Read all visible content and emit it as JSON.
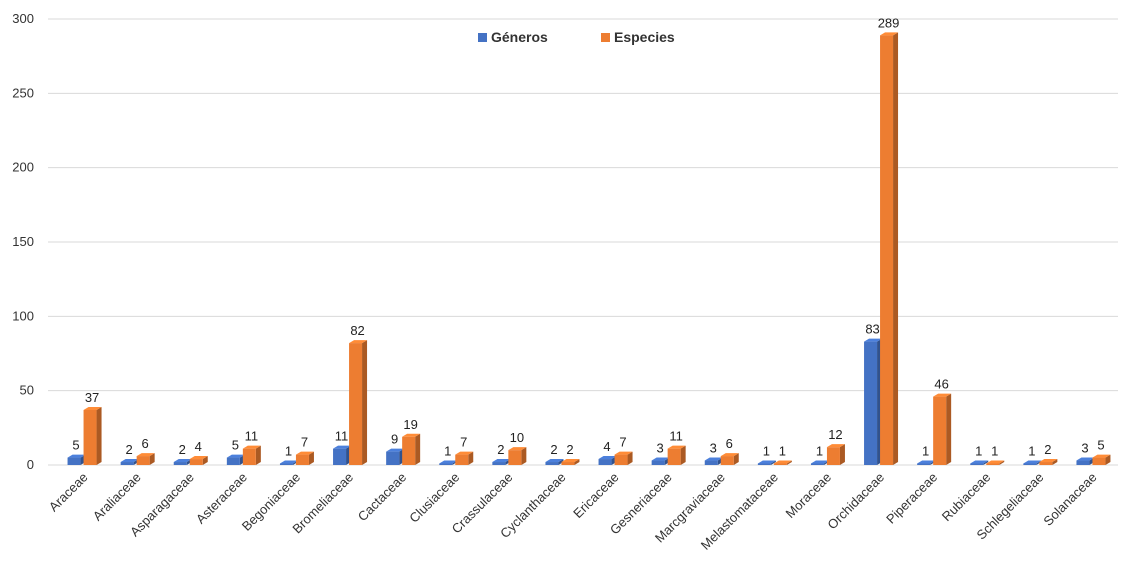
{
  "chart_data": {
    "type": "bar",
    "title": "",
    "xlabel": "",
    "ylabel": "",
    "ylim": [
      0,
      300
    ],
    "yticks": [
      "0",
      "50",
      "100",
      "150",
      "200",
      "250",
      "300"
    ],
    "grid": true,
    "legend_position": "top-center",
    "categories": [
      "Araceae",
      "Araliaceae",
      "Asparagaceae",
      "Asteraceae",
      "Begoniaceae",
      "Bromeliaceae",
      "Cactaceae",
      "Clusiaceae",
      "Crassulaceae",
      "Cyclanthaceae",
      "Ericaceae",
      "Gesneriaceae",
      "Marcgraviaceae",
      "Melastomataceae",
      "Moraceae",
      "Orchidaceae",
      "Piperaceae",
      "Rubiaceae",
      "Schlegeliaceae",
      "Solanaceae"
    ],
    "series": [
      {
        "name": "Géneros",
        "color": "#4472c4",
        "values": [
          5,
          2,
          2,
          5,
          1,
          11,
          9,
          1,
          2,
          2,
          4,
          3,
          3,
          1,
          1,
          83,
          1,
          1,
          1,
          3
        ]
      },
      {
        "name": "Especies",
        "color": "#ed7d31",
        "values": [
          37,
          6,
          4,
          11,
          7,
          82,
          19,
          7,
          10,
          2,
          7,
          11,
          6,
          1,
          12,
          289,
          46,
          1,
          2,
          5
        ]
      }
    ]
  }
}
